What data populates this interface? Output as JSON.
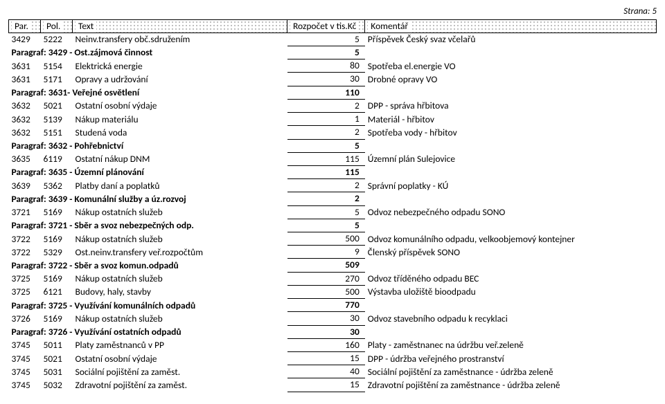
{
  "page_label": "Strana: 5",
  "header": {
    "par": "Par.",
    "pol": "Pol.",
    "text": "Text",
    "amount": "Rozpočet v tis.Kč",
    "comment": "Komentář"
  },
  "rows": [
    {
      "type": "item",
      "par": "3429",
      "pol": "5222",
      "text": "Neinv.transfery obč.sdružením",
      "amount": "5",
      "comment": "Příspěvek Český svaz včelařů"
    },
    {
      "type": "paragraf",
      "label": "Paragraf: 3429 - Ost.zájmová činnost",
      "amount": "5"
    },
    {
      "type": "item",
      "par": "3631",
      "pol": "5154",
      "text": "Elektrická energie",
      "amount": "80",
      "comment": "Spotřeba el.energie VO"
    },
    {
      "type": "item",
      "par": "3631",
      "pol": "5171",
      "text": "Opravy a udržování",
      "amount": "30",
      "comment": "Drobné opravy VO"
    },
    {
      "type": "paragraf",
      "label": "Paragraf: 3631- Veřejné osvětlení",
      "amount": "110"
    },
    {
      "type": "item",
      "par": "3632",
      "pol": "5021",
      "text": "Ostatní osobní výdaje",
      "amount": "2",
      "comment": "DPP - správa hřbitova"
    },
    {
      "type": "item",
      "par": "3632",
      "pol": "5139",
      "text": "Nákup materiálu",
      "amount": "1",
      "comment": "Materiál - hřbitov"
    },
    {
      "type": "item",
      "par": "3632",
      "pol": "5151",
      "text": "Studená voda",
      "amount": "2",
      "comment": "Spotřeba vody - hřbitov"
    },
    {
      "type": "paragraf",
      "label": "Paragraf: 3632 - Pohřebnictví",
      "amount": "5"
    },
    {
      "type": "item",
      "par": "3635",
      "pol": "6119",
      "text": "Ostatní nákup DNM",
      "amount": "115",
      "comment": "Územní plán Sulejovice"
    },
    {
      "type": "paragraf",
      "label": "Paragraf: 3635 - Územní plánování",
      "amount": "115"
    },
    {
      "type": "item",
      "par": "3639",
      "pol": "5362",
      "text": "Platby daní a poplatků",
      "amount": "2",
      "comment": "Správní poplatky - KÚ"
    },
    {
      "type": "paragraf",
      "label": "Paragraf: 3639 - Komunální služby a úz.rozvoj",
      "amount": "2"
    },
    {
      "type": "item",
      "par": "3721",
      "pol": "5169",
      "text": "Nákup ostatních služeb",
      "amount": "5",
      "comment": "Odvoz nebezpečného odpadu SONO"
    },
    {
      "type": "paragraf",
      "label": "Paragraf: 3721 - Sběr a svoz nebezpečných odp.",
      "amount": "5"
    },
    {
      "type": "item",
      "par": "3722",
      "pol": "5169",
      "text": "Nákup ostatních služeb",
      "amount": "500",
      "comment": "Odvoz komunálního odpadu, velkoobjemový kontejner"
    },
    {
      "type": "item",
      "par": "3722",
      "pol": "5329",
      "text": "Ost.neinv.transfery veř.rozpočtům",
      "amount": "9",
      "comment": "Členský příspěvek SONO"
    },
    {
      "type": "paragraf",
      "label": "Paragraf: 3722 - Sběr a svoz komun.odpadů",
      "amount": "509"
    },
    {
      "type": "item",
      "par": "3725",
      "pol": "5169",
      "text": "Nákup ostatních služeb",
      "amount": "270",
      "comment": "Odvoz tříděného odpadu BEC"
    },
    {
      "type": "item",
      "par": "3725",
      "pol": "6121",
      "text": "Budovy, haly, stavby",
      "amount": "500",
      "comment": "Výstavba uložiště bioodpadu"
    },
    {
      "type": "paragraf",
      "label": "Paragraf: 3725 - Využívání komunálních odpadů",
      "amount": "770"
    },
    {
      "type": "item",
      "par": "3726",
      "pol": "5169",
      "text": "Nákup ostatních služeb",
      "amount": "30",
      "comment": "Odvoz stavebního odpadu k recyklaci"
    },
    {
      "type": "paragraf",
      "label": "Paragraf: 3726 - Využívání ostatních odpadů",
      "amount": "30"
    },
    {
      "type": "item",
      "par": "3745",
      "pol": "5011",
      "text": "Platy zaměstnanců v PP",
      "amount": "160",
      "comment": "Platy - zaměstnanec na údržbu veř.zeleně"
    },
    {
      "type": "item",
      "par": "3745",
      "pol": "5021",
      "text": "Ostatní osobní výdaje",
      "amount": "15",
      "comment": "DPP - údržba veřejného prostranství"
    },
    {
      "type": "item",
      "par": "3745",
      "pol": "5031",
      "text": "Sociální pojištění za zaměst.",
      "amount": "40",
      "comment": "Sociální pojištění za zaměstnance - údržba zeleně"
    },
    {
      "type": "item",
      "par": "3745",
      "pol": "5032",
      "text": "Zdravotní pojištění za zaměst.",
      "amount": "15",
      "comment": "Zdravotní pojištění za zaměstnance - údržba zeleně"
    }
  ]
}
